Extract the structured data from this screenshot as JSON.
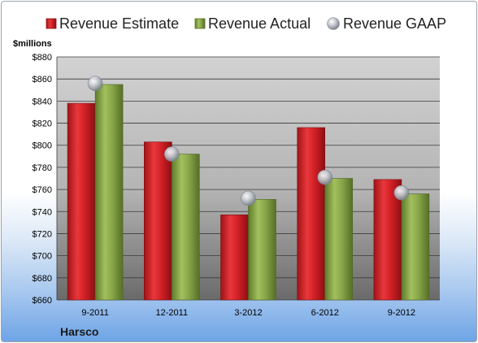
{
  "colors": {
    "estimate": "#d9262b",
    "actual": "#8daa4a",
    "gaap": "#b9bec6"
  },
  "company": "Harsco",
  "chart_data": {
    "type": "bar",
    "ylabel": "$millions",
    "ylim": [
      660,
      880
    ],
    "ytick_step": 20,
    "ytick_prefix": "$",
    "grid": true,
    "legend_placement": "top",
    "categories": [
      "9-2011",
      "12-2011",
      "3-2012",
      "6-2012",
      "9-2012"
    ],
    "series": [
      {
        "name": "Revenue Estimate",
        "kind": "bar",
        "values": [
          838,
          803,
          737,
          816,
          769
        ]
      },
      {
        "name": "Revenue Actual",
        "kind": "bar",
        "values": [
          855,
          792,
          751,
          770,
          756
        ]
      },
      {
        "name": "Revenue GAAP",
        "kind": "marker",
        "values": [
          856,
          792,
          752,
          771,
          757
        ]
      }
    ]
  }
}
